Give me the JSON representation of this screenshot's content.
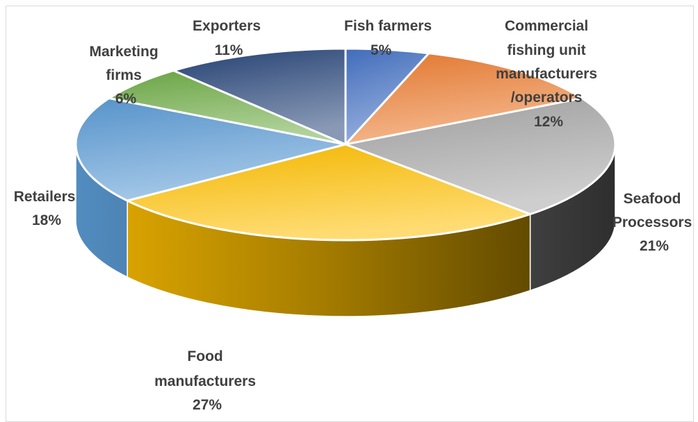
{
  "chart_data": {
    "type": "pie",
    "title": "",
    "legend": "none",
    "slices": [
      {
        "name": "Fish farmers",
        "value": 5,
        "label": "5%",
        "color": "#4472c4"
      },
      {
        "name": "Commercial fishing unit manufacturers /operators",
        "value": 12,
        "label": "12%",
        "color": "#ed7d31"
      },
      {
        "name": "Seafood Processors",
        "value": 21,
        "label": "21%",
        "color": "#a5a5a5"
      },
      {
        "name": "Food manufacturers",
        "value": 27,
        "label": "27%",
        "color": "#ffc000"
      },
      {
        "name": "Retailers",
        "value": 18,
        "label": "18%",
        "color": "#5b9bd5"
      },
      {
        "name": "Marketing firms",
        "value": 6,
        "label": "6%",
        "color": "#70ad47"
      },
      {
        "name": "Exporters",
        "value": 11,
        "label": "11%",
        "color": "#264478"
      }
    ]
  }
}
